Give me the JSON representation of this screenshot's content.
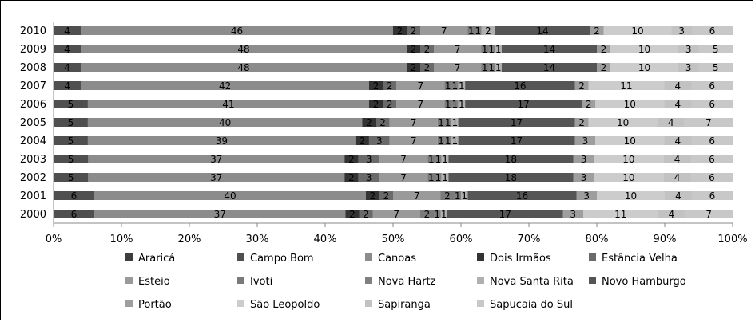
{
  "chart_data": {
    "type": "bar",
    "orientation": "horizontal",
    "stacked": "percent",
    "categories": [
      "2010",
      "2009",
      "2008",
      "2007",
      "2006",
      "2005",
      "2004",
      "2003",
      "2002",
      "2001",
      "2000"
    ],
    "x_ticks": [
      "0%",
      "10%",
      "20%",
      "30%",
      "40%",
      "50%",
      "60%",
      "70%",
      "80%",
      "90%",
      "100%"
    ],
    "xlim": [
      0,
      100
    ],
    "grid": false,
    "legend_position": "bottom",
    "series": [
      {
        "name": "Araricá",
        "color": "#3d3d3d",
        "values": [
          0,
          0,
          0,
          0,
          0,
          0,
          0,
          0,
          0,
          0,
          0
        ]
      },
      {
        "name": "Campo Bom",
        "color": "#4f4f4f",
        "values": [
          4,
          4,
          4,
          4,
          5,
          5,
          5,
          5,
          5,
          6,
          6
        ]
      },
      {
        "name": "Canoas",
        "color": "#8c8c8c",
        "values": [
          46,
          48,
          48,
          42,
          41,
          40,
          39,
          37,
          37,
          40,
          37
        ]
      },
      {
        "name": "Dois Irmãos",
        "color": "#333333",
        "values": [
          2,
          2,
          2,
          2,
          2,
          2,
          2,
          2,
          2,
          2,
          2
        ]
      },
      {
        "name": "Estância Velha",
        "color": "#6a6a6a",
        "values": [
          2,
          2,
          2,
          2,
          2,
          2,
          3,
          3,
          3,
          2,
          2
        ]
      },
      {
        "name": "Esteio",
        "color": "#9a9a9a",
        "values": [
          7,
          7,
          7,
          7,
          7,
          7,
          7,
          7,
          7,
          7,
          7
        ]
      },
      {
        "name": "Ivoti",
        "color": "#7a7a7a",
        "values": [
          1,
          1,
          1,
          1,
          1,
          1,
          1,
          1,
          1,
          2,
          2
        ]
      },
      {
        "name": "Nova Hartz",
        "color": "#808080",
        "values": [
          1,
          1,
          1,
          1,
          1,
          1,
          1,
          1,
          1,
          1,
          1
        ]
      },
      {
        "name": "Nova Santa Rita",
        "color": "#b0b0b0",
        "values": [
          2,
          1,
          1,
          1,
          1,
          1,
          1,
          1,
          1,
          1,
          1
        ]
      },
      {
        "name": "Novo Hamburgo",
        "color": "#555555",
        "values": [
          14,
          14,
          14,
          16,
          17,
          17,
          17,
          18,
          18,
          16,
          17
        ]
      },
      {
        "name": "Portão",
        "color": "#9e9e9e",
        "values": [
          2,
          2,
          2,
          2,
          2,
          2,
          3,
          3,
          3,
          3,
          3
        ]
      },
      {
        "name": "São Leopoldo",
        "color": "#cccccc",
        "values": [
          10,
          10,
          10,
          11,
          10,
          10,
          10,
          10,
          10,
          10,
          11
        ]
      },
      {
        "name": "Sapiranga",
        "color": "#c2c2c2",
        "values": [
          3,
          3,
          3,
          4,
          4,
          4,
          4,
          4,
          4,
          4,
          4
        ]
      },
      {
        "name": "Sapucaia do Sul",
        "color": "#c8c8c8",
        "values": [
          6,
          5,
          5,
          6,
          6,
          7,
          6,
          6,
          6,
          6,
          7
        ]
      }
    ]
  }
}
